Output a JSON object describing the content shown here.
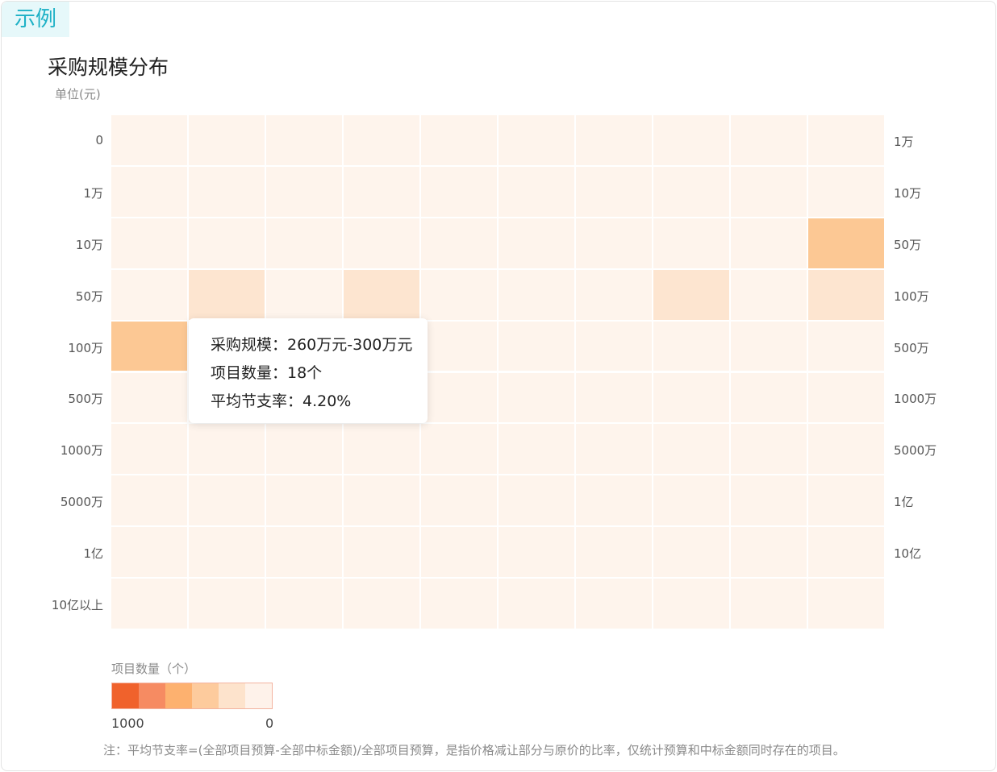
{
  "tag_label": "示例",
  "chart_data": {
    "type": "heatmap",
    "title": "采购规模分布",
    "unit_label": "单位(元)",
    "y_left_labels": [
      "0",
      "1万",
      "10万",
      "50万",
      "100万",
      "500万",
      "1000万",
      "5000万",
      "1亿",
      "10亿以上"
    ],
    "y_right_labels": [
      "1万",
      "10万",
      "50万",
      "100万",
      "500万",
      "1000万",
      "5000万",
      "1亿",
      "10亿",
      ""
    ],
    "columns": 10,
    "values": [
      [
        0,
        0,
        0,
        0,
        0,
        0,
        0,
        0,
        0,
        0
      ],
      [
        0,
        0,
        0,
        0,
        0,
        0,
        0,
        0,
        0,
        0
      ],
      [
        0,
        0,
        0,
        0,
        0,
        0,
        0,
        0,
        0,
        3
      ],
      [
        0,
        1,
        0,
        1,
        0,
        0,
        0,
        1,
        0,
        1
      ],
      [
        3,
        0,
        0,
        0,
        0,
        0,
        0,
        0,
        0,
        0
      ],
      [
        0,
        0,
        0,
        0,
        0,
        0,
        0,
        0,
        0,
        0
      ],
      [
        0,
        0,
        0,
        0,
        0,
        0,
        0,
        0,
        0,
        0
      ],
      [
        0,
        0,
        0,
        0,
        0,
        0,
        0,
        0,
        0,
        0
      ],
      [
        0,
        0,
        0,
        0,
        0,
        0,
        0,
        0,
        0,
        0
      ],
      [
        0,
        0,
        0,
        0,
        0,
        0,
        0,
        0,
        0,
        0
      ]
    ],
    "color_levels": [
      "#fef4ec",
      "#fde5d0",
      "#fdd5b0",
      "#fcc894"
    ],
    "legend": {
      "title": "项目数量（个）",
      "min_label": "1000",
      "max_label": "0",
      "colors": [
        "#f0622c",
        "#f68b62",
        "#fdb16f",
        "#fdcb9d",
        "#fde3cc",
        "#fef2ea"
      ]
    },
    "tooltip": {
      "scale": "采购规模：260万元-300万元",
      "count": "项目数量：18个",
      "rate": "平均节支率：4.20%"
    },
    "note": "注：平均节支率=(全部项目预算-全部中标金额)/全部项目预算，是指价格减让部分与原价的比率，仅统计预算和中标金额同时存在的项目。"
  }
}
